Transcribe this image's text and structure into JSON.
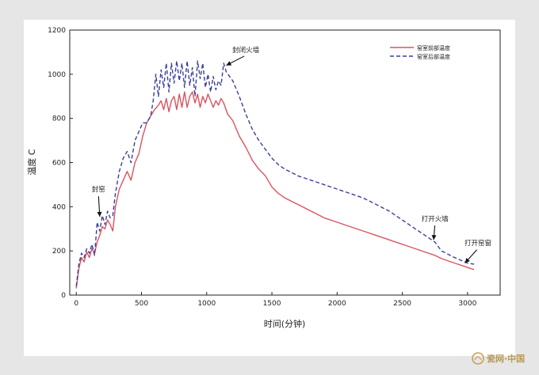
{
  "chart_data": {
    "type": "line",
    "xlabel": "时间(分钟)",
    "ylabel": "温度 C",
    "xlim": [
      -50,
      3250
    ],
    "ylim": [
      0,
      1200
    ],
    "xticks": [
      0,
      500,
      1000,
      1500,
      2000,
      2500,
      3000
    ],
    "yticks": [
      0,
      200,
      400,
      600,
      800,
      1000,
      1200
    ],
    "grid": false,
    "legend_position": "top-right",
    "series": [
      {
        "name": "窑室前部温度",
        "color": "#d9545e",
        "dash": "solid",
        "x": [
          0,
          20,
          40,
          60,
          80,
          100,
          120,
          140,
          160,
          180,
          200,
          220,
          240,
          260,
          280,
          300,
          330,
          360,
          390,
          420,
          450,
          480,
          510,
          540,
          570,
          600,
          630,
          650,
          670,
          690,
          710,
          730,
          750,
          770,
          790,
          810,
          830,
          850,
          870,
          890,
          910,
          930,
          950,
          970,
          990,
          1010,
          1030,
          1050,
          1070,
          1090,
          1110,
          1130,
          1160,
          1200,
          1250,
          1300,
          1350,
          1400,
          1450,
          1500,
          1550,
          1600,
          1650,
          1700,
          1800,
          1900,
          2000,
          2100,
          2200,
          2300,
          2400,
          2500,
          2600,
          2700,
          2750,
          2800,
          2900,
          3000,
          3050
        ],
        "y": [
          30,
          120,
          170,
          150,
          195,
          170,
          210,
          190,
          240,
          270,
          310,
          300,
          340,
          320,
          290,
          400,
          480,
          520,
          560,
          520,
          600,
          640,
          720,
          780,
          810,
          840,
          860,
          880,
          840,
          890,
          830,
          880,
          900,
          840,
          910,
          850,
          920,
          850,
          900,
          920,
          870,
          910,
          850,
          900,
          870,
          910,
          880,
          850,
          880,
          860,
          890,
          870,
          820,
          790,
          720,
          670,
          610,
          570,
          540,
          490,
          460,
          440,
          425,
          410,
          380,
          350,
          330,
          310,
          290,
          270,
          250,
          230,
          210,
          190,
          180,
          165,
          145,
          125,
          115
        ]
      },
      {
        "name": "窑室后部温度",
        "color": "#3a3f9c",
        "dash": "dashed",
        "x": [
          0,
          20,
          40,
          60,
          80,
          100,
          120,
          140,
          160,
          180,
          200,
          220,
          240,
          260,
          280,
          300,
          330,
          360,
          390,
          420,
          450,
          480,
          510,
          540,
          570,
          590,
          610,
          630,
          650,
          670,
          690,
          710,
          730,
          750,
          770,
          790,
          810,
          830,
          850,
          870,
          890,
          910,
          930,
          950,
          970,
          990,
          1010,
          1030,
          1050,
          1070,
          1090,
          1110,
          1130,
          1150,
          1200,
          1250,
          1300,
          1350,
          1400,
          1450,
          1500,
          1550,
          1600,
          1700,
          1800,
          1900,
          2000,
          2100,
          2200,
          2300,
          2400,
          2500,
          2600,
          2700,
          2750,
          2800,
          2900,
          3000,
          3050
        ],
        "y": [
          40,
          140,
          190,
          170,
          210,
          190,
          230,
          180,
          330,
          290,
          360,
          320,
          380,
          350,
          360,
          460,
          560,
          620,
          650,
          600,
          700,
          740,
          780,
          780,
          810,
          880,
          1000,
          900,
          1020,
          940,
          1050,
          920,
          1050,
          960,
          1060,
          970,
          1050,
          940,
          1060,
          950,
          1030,
          900,
          1060,
          980,
          1050,
          940,
          1000,
          920,
          990,
          930,
          970,
          950,
          1050,
          1010,
          970,
          900,
          820,
          750,
          700,
          660,
          620,
          590,
          570,
          540,
          520,
          500,
          480,
          460,
          440,
          410,
          380,
          340,
          300,
          260,
          240,
          200,
          170,
          145,
          140
        ]
      }
    ],
    "annotations": [
      {
        "text": "封窑",
        "x": 170,
        "y": 470,
        "target_x": 180,
        "target_y": 355
      },
      {
        "text": "封闭火墙",
        "x": 1300,
        "y": 1100,
        "target_x": 1150,
        "target_y": 1040
      },
      {
        "text": "打开火墙",
        "x": 2750,
        "y": 335,
        "target_x": 2740,
        "target_y": 250
      },
      {
        "text": "打开窑窗",
        "x": 3080,
        "y": 225,
        "target_x": 2980,
        "target_y": 145
      }
    ]
  },
  "watermark": {
    "text": "瓷网·中国",
    "logo_icon": "porcelain-logo-icon"
  },
  "colors": {
    "page_background": "#e6e6e6",
    "paper": "#ffffff",
    "frame": "#222222"
  }
}
